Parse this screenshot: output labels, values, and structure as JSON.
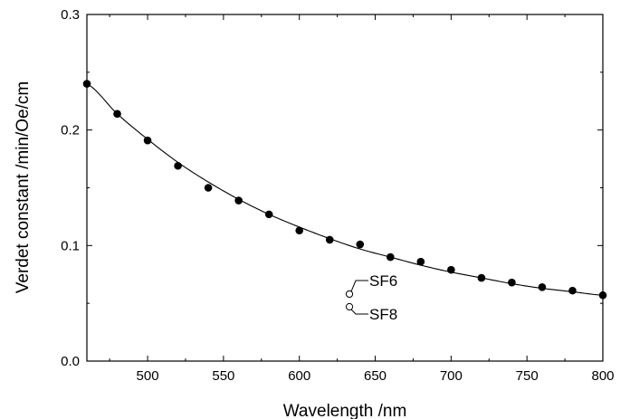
{
  "chart_data": {
    "type": "scatter",
    "title": "",
    "xlabel": "Wavelength /nm",
    "ylabel": "Verdet constant /min/Oe/cm",
    "xlim": [
      460,
      800
    ],
    "ylim": [
      0.0,
      0.3
    ],
    "xticks": [
      500,
      550,
      600,
      650,
      700,
      750,
      800
    ],
    "xtick_labels": [
      "500",
      "550",
      "600",
      "650",
      "700",
      "750",
      "800"
    ],
    "yticks": [
      0.0,
      0.1,
      0.2,
      0.3
    ],
    "ytick_labels": [
      "0.0",
      "0.1",
      "0.2",
      "0.3"
    ],
    "grid": false,
    "series": [
      {
        "marker": "filled-circle",
        "x": [
          460,
          480,
          500,
          520,
          540,
          560,
          580,
          600,
          620,
          640,
          660,
          680,
          700,
          720,
          740,
          760,
          780,
          800
        ],
        "y": [
          0.24,
          0.214,
          0.191,
          0.169,
          0.15,
          0.139,
          0.127,
          0.113,
          0.105,
          0.101,
          0.09,
          0.086,
          0.079,
          0.072,
          0.068,
          0.064,
          0.061,
          0.057
        ]
      },
      {
        "type": "line",
        "x": [
          460,
          480,
          500,
          520,
          540,
          560,
          580,
          600,
          620,
          640,
          660,
          680,
          700,
          720,
          740,
          760,
          780,
          800
        ],
        "y": [
          0.24,
          0.214,
          0.192,
          0.172,
          0.155,
          0.14,
          0.127,
          0.116,
          0.106,
          0.097,
          0.09,
          0.083,
          0.077,
          0.072,
          0.067,
          0.063,
          0.06,
          0.057
        ]
      }
    ],
    "annotations": [
      {
        "text": "SF6",
        "marker": "open-circle",
        "x": 633,
        "y": 0.058
      },
      {
        "text": "SF8",
        "marker": "open-circle",
        "x": 633,
        "y": 0.047
      }
    ],
    "colors": {
      "axis": "#000000",
      "marker": "#000000",
      "line": "#000000",
      "background": "#ffffff"
    }
  }
}
